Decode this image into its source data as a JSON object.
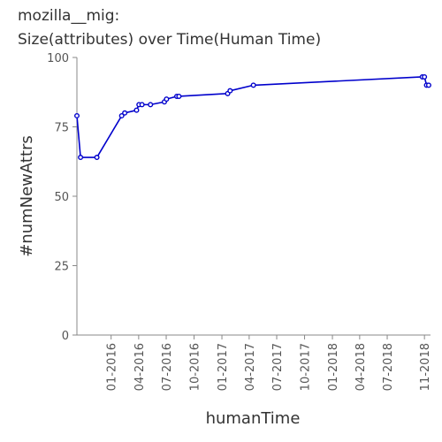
{
  "chart_data": {
    "type": "line",
    "title": [
      "mozilla__mig:",
      "Size(attributes) over Time(Human Time)"
    ],
    "xlabel": "humanTime",
    "ylabel": "#numNewAttrs",
    "ylim": [
      0,
      100
    ],
    "y_ticks": [
      "0",
      "25",
      "50",
      "75",
      "100"
    ],
    "x_ticks": [
      "01-2016",
      "04-2016",
      "07-2016",
      "10-2016",
      "01-2017",
      "04-2017",
      "07-2017",
      "10-2017",
      "01-2018",
      "04-2018",
      "07-2018",
      "11-2018"
    ],
    "grid": false,
    "legend": "none",
    "color": "#0000cc",
    "series": [
      {
        "points": [
          {
            "x": "2015-09-10",
            "y": 79
          },
          {
            "x": "2015-09-22",
            "y": 64
          },
          {
            "x": "2015-11-15",
            "y": 64
          },
          {
            "x": "2016-02-05",
            "y": 79
          },
          {
            "x": "2016-02-15",
            "y": 80
          },
          {
            "x": "2016-03-25",
            "y": 81
          },
          {
            "x": "2016-04-02",
            "y": 83
          },
          {
            "x": "2016-04-12",
            "y": 83
          },
          {
            "x": "2016-05-10",
            "y": 83
          },
          {
            "x": "2016-06-25",
            "y": 84
          },
          {
            "x": "2016-07-02",
            "y": 85
          },
          {
            "x": "2016-08-05",
            "y": 86
          },
          {
            "x": "2016-08-12",
            "y": 86
          },
          {
            "x": "2017-01-20",
            "y": 87
          },
          {
            "x": "2017-01-28",
            "y": 88
          },
          {
            "x": "2017-04-15",
            "y": 90
          },
          {
            "x": "2018-10-25",
            "y": 93
          },
          {
            "x": "2018-11-01",
            "y": 93
          },
          {
            "x": "2018-11-08",
            "y": 90
          },
          {
            "x": "2018-11-15",
            "y": 90
          }
        ]
      }
    ]
  }
}
